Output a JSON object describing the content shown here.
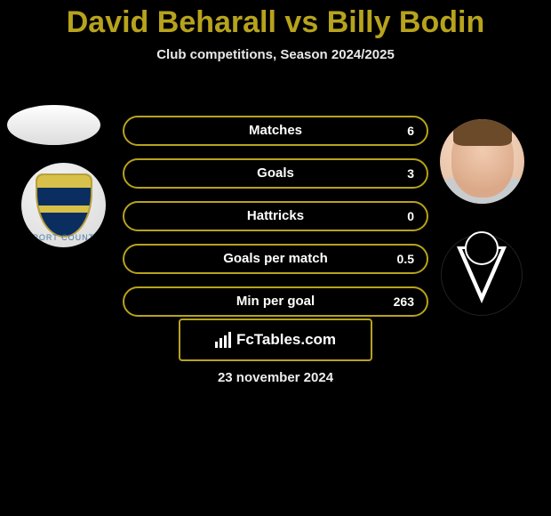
{
  "page": {
    "title_player1": "David Beharall",
    "title_vs": "vs",
    "title_player2": "Billy Bodin",
    "subtitle": "Club competitions, Season 2024/2025",
    "date": "23 november 2024"
  },
  "colors": {
    "player1_accent": "#b7a31c",
    "bar_border": "#b7a31c",
    "p1_fill": "#8a7a19",
    "p2_fill": "#2a2a2a",
    "background": "#000000"
  },
  "stats": {
    "rows": [
      {
        "label": "Matches",
        "p1": "",
        "p2": "6",
        "p1_pct": 0,
        "p2_pct": 0
      },
      {
        "label": "Goals",
        "p1": "",
        "p2": "3",
        "p1_pct": 0,
        "p2_pct": 0
      },
      {
        "label": "Hattricks",
        "p1": "",
        "p2": "0",
        "p1_pct": 0,
        "p2_pct": 0
      },
      {
        "label": "Goals per match",
        "p1": "",
        "p2": "0.5",
        "p1_pct": 0,
        "p2_pct": 0
      },
      {
        "label": "Min per goal",
        "p1": "",
        "p2": "263",
        "p1_pct": 0,
        "p2_pct": 0
      }
    ]
  },
  "branding": {
    "site_name_1": "Fc",
    "site_name_2": "Tables",
    "site_name_3": ".com"
  },
  "left_player": {
    "name": "David Beharall"
  },
  "right_player": {
    "name": "Billy Bodin"
  },
  "left_team_badge_text": "PORT COUNT",
  "right_team_badge_letter": ""
}
